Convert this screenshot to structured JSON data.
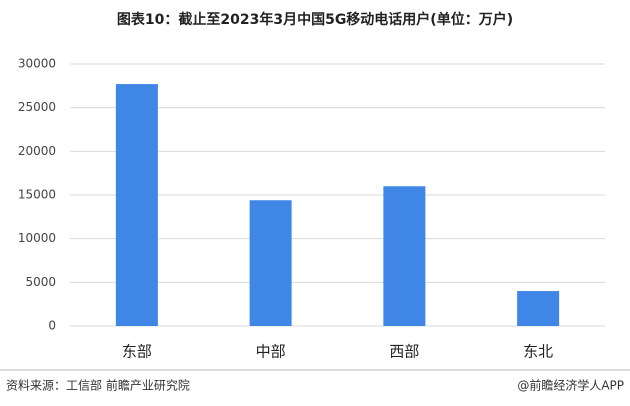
{
  "chart_data": {
    "type": "bar",
    "title": "图表10：截止至2023年3月中国5G移动电话用户(单位：万户)",
    "categories": [
      "东部",
      "中部",
      "西部",
      "东北"
    ],
    "values": [
      27700,
      14400,
      16000,
      4000
    ],
    "color": "#3f86e6",
    "ylim": [
      0,
      30000
    ],
    "yticks": [
      0,
      5000,
      10000,
      15000,
      20000,
      25000,
      30000
    ],
    "grid": true
  },
  "footer": {
    "source": "资料来源：工信部 前瞻产业研究院",
    "credit": "@前瞻经济学人APP"
  }
}
